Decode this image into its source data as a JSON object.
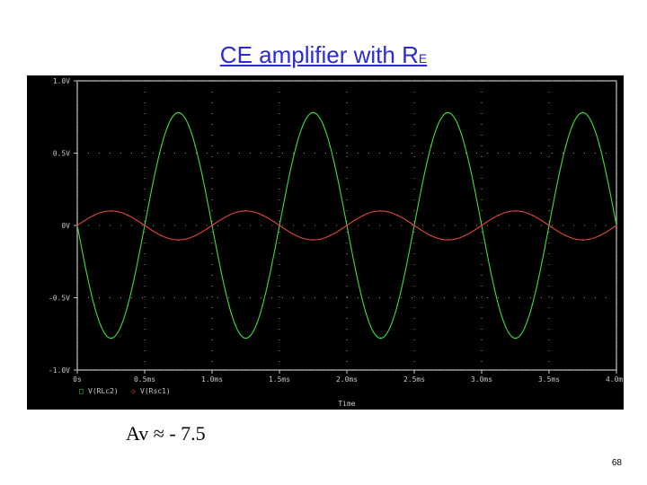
{
  "slide": {
    "title_main": "CE amplifier with R",
    "title_sub": "E",
    "gain_text": "Av ≈ - 7.5",
    "page_number": "68"
  },
  "colors": {
    "background": "#000000",
    "axis": "#c8c8c8",
    "grid": "#9a9a9a",
    "trace_green": "#39e03a",
    "trace_red": "#e0463a",
    "title": "#2b2bd0"
  },
  "chart_data": {
    "type": "line",
    "xlabel": "Time",
    "ylabel": "",
    "xlim": [
      0,
      4.0
    ],
    "ylim": [
      -1.0,
      1.0
    ],
    "x_ticks": [
      "0s",
      "0.5ms",
      "1.0ms",
      "1.5ms",
      "2.0ms",
      "2.5ms",
      "3.0ms",
      "3.5ms",
      "4.0ms"
    ],
    "y_ticks": [
      "1.0V",
      "0.5V",
      "0V",
      "-0.5V",
      "-1.0V"
    ],
    "grid": true,
    "legend_position": "bottom-left",
    "series": [
      {
        "name": "V(RLc2)",
        "marker": "□",
        "color": "#39e03a",
        "amplitude": 0.78,
        "period_ms": 1.0,
        "phase": "inverted",
        "x": [
          0,
          0.125,
          0.25,
          0.375,
          0.5,
          0.625,
          0.75,
          0.875,
          1.0,
          1.125,
          1.25,
          1.375,
          1.5,
          1.625,
          1.75,
          1.875,
          2.0,
          2.125,
          2.25,
          2.375,
          2.5,
          2.625,
          2.75,
          2.875,
          3.0,
          3.125,
          3.25,
          3.375,
          3.5,
          3.625,
          3.75,
          3.875,
          4.0
        ],
        "values": [
          0,
          -0.55,
          -0.78,
          -0.55,
          0,
          0.55,
          0.78,
          0.55,
          0,
          -0.55,
          -0.78,
          -0.55,
          0,
          0.55,
          0.78,
          0.55,
          0,
          -0.55,
          -0.78,
          -0.55,
          0,
          0.55,
          0.78,
          0.55,
          0,
          -0.55,
          -0.78,
          -0.55,
          0,
          0.55,
          0.78,
          0.55,
          0
        ]
      },
      {
        "name": "V(Rsc1)",
        "marker": "◇",
        "color": "#e0463a",
        "amplitude": 0.1,
        "period_ms": 1.0,
        "phase": "normal",
        "x": [
          0,
          0.125,
          0.25,
          0.375,
          0.5,
          0.625,
          0.75,
          0.875,
          1.0,
          1.125,
          1.25,
          1.375,
          1.5,
          1.625,
          1.75,
          1.875,
          2.0,
          2.125,
          2.25,
          2.375,
          2.5,
          2.625,
          2.75,
          2.875,
          3.0,
          3.125,
          3.25,
          3.375,
          3.5,
          3.625,
          3.75,
          3.875,
          4.0
        ],
        "values": [
          0,
          0.07,
          0.1,
          0.07,
          0,
          -0.07,
          -0.1,
          -0.07,
          0,
          0.07,
          0.1,
          0.07,
          0,
          -0.07,
          -0.1,
          -0.07,
          0,
          0.07,
          0.1,
          0.07,
          0,
          -0.07,
          -0.1,
          -0.07,
          0,
          0.07,
          0.1,
          0.07,
          0,
          -0.07,
          -0.1,
          -0.07,
          0
        ]
      }
    ]
  }
}
